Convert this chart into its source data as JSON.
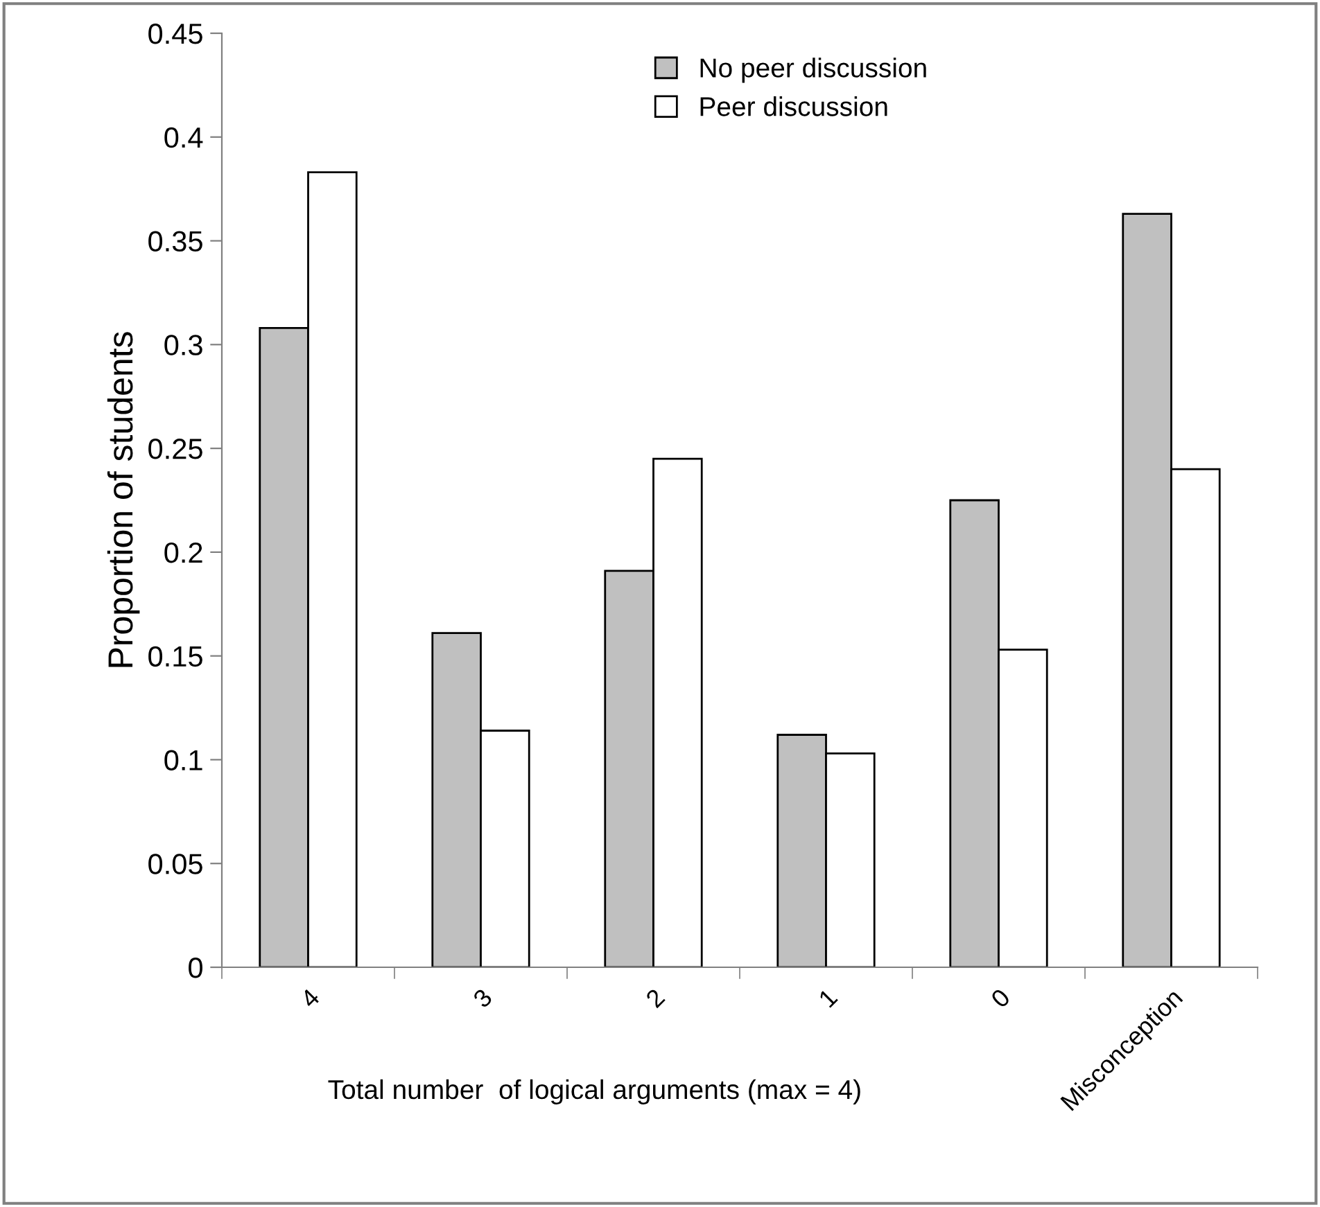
{
  "chart_data": {
    "type": "bar",
    "xlabel": "Total number  of logical arguments (max = 4)",
    "ylabel": "Proportion of students",
    "categories": [
      "4",
      "3",
      "2",
      "1",
      "0",
      "Misconception"
    ],
    "series": [
      {
        "name": "No peer discussion",
        "color": "#c0c0c0",
        "values": [
          0.308,
          0.161,
          0.191,
          0.112,
          0.225,
          0.363
        ]
      },
      {
        "name": "Peer discussion",
        "color": "#ffffff",
        "values": [
          0.383,
          0.114,
          0.245,
          0.103,
          0.153,
          0.24
        ]
      }
    ],
    "ylim": [
      0,
      0.45
    ],
    "yticks": [
      0,
      0.05,
      0.1,
      0.15,
      0.2,
      0.25,
      0.3,
      0.35,
      0.4,
      0.45
    ],
    "grid": false,
    "legend": "top"
  }
}
